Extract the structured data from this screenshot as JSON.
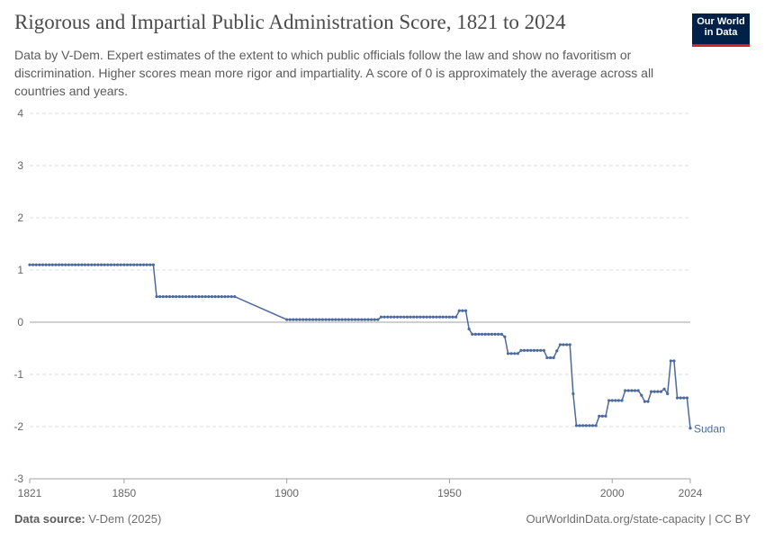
{
  "header": {
    "title": "Rigorous and Impartial Public Administration Score, 1821 to 2024",
    "subtitle": "Data by V-Dem. Expert estimates of the extent to which public officials follow the law and show no favoritism or discrimination. Higher scores mean more rigor and impartiality. A score of 0 is approximately the average across all countries and years."
  },
  "logo": {
    "line1": "Our World",
    "line2": "in Data"
  },
  "footer": {
    "source_label": "Data source:",
    "source_value": "V-Dem (2025)",
    "right_text": "OurWorldinData.org/state-capacity | CC BY"
  },
  "colors": {
    "series": "#4c6a9c",
    "grid": "#dddddd",
    "zero_line": "#a1a1a1",
    "axis_text": "#666666"
  },
  "chart_data": {
    "type": "line",
    "title": "Rigorous and Impartial Public Administration Score, 1821 to 2024",
    "xlim": [
      1821,
      2024
    ],
    "ylim": [
      -3,
      4
    ],
    "x_ticks": [
      1821,
      1850,
      1900,
      1950,
      2000,
      2024
    ],
    "y_ticks": [
      4,
      3,
      2,
      1,
      0,
      -1,
      -2,
      -3
    ],
    "grid": "horizontal dashed",
    "series": [
      {
        "name": "Sudan",
        "label_position": "end",
        "segments": [
          {
            "from": 1821,
            "to": 1859,
            "value": 1.1
          },
          {
            "from": 1860,
            "to": 1884,
            "value": 0.49
          },
          {
            "from": 1900,
            "to": 1928,
            "value": 0.05
          },
          {
            "from": 1929,
            "to": 1952,
            "value": 0.1
          },
          {
            "from": 1953,
            "to": 1955,
            "value": 0.22
          },
          {
            "from": 1956,
            "to": 1956,
            "value": -0.13
          },
          {
            "from": 1957,
            "to": 1966,
            "value": -0.23
          },
          {
            "from": 1967,
            "to": 1967,
            "value": -0.28
          },
          {
            "from": 1968,
            "to": 1971,
            "value": -0.6
          },
          {
            "from": 1972,
            "to": 1979,
            "value": -0.54
          },
          {
            "from": 1980,
            "to": 1982,
            "value": -0.68
          },
          {
            "from": 1983,
            "to": 1983,
            "value": -0.55
          },
          {
            "from": 1984,
            "to": 1987,
            "value": -0.43
          },
          {
            "from": 1988,
            "to": 1988,
            "value": -1.37
          },
          {
            "from": 1989,
            "to": 1995,
            "value": -1.98
          },
          {
            "from": 1996,
            "to": 1998,
            "value": -1.8
          },
          {
            "from": 1999,
            "to": 2003,
            "value": -1.5
          },
          {
            "from": 2004,
            "to": 2008,
            "value": -1.31
          },
          {
            "from": 2009,
            "to": 2009,
            "value": -1.4
          },
          {
            "from": 2010,
            "to": 2011,
            "value": -1.52
          },
          {
            "from": 2012,
            "to": 2015,
            "value": -1.33
          },
          {
            "from": 2016,
            "to": 2016,
            "value": -1.28
          },
          {
            "from": 2017,
            "to": 2017,
            "value": -1.37
          },
          {
            "from": 2018,
            "to": 2019,
            "value": -0.74
          },
          {
            "from": 2020,
            "to": 2023,
            "value": -1.45
          },
          {
            "from": 2024,
            "to": 2024,
            "value": -2.03
          }
        ]
      }
    ]
  }
}
